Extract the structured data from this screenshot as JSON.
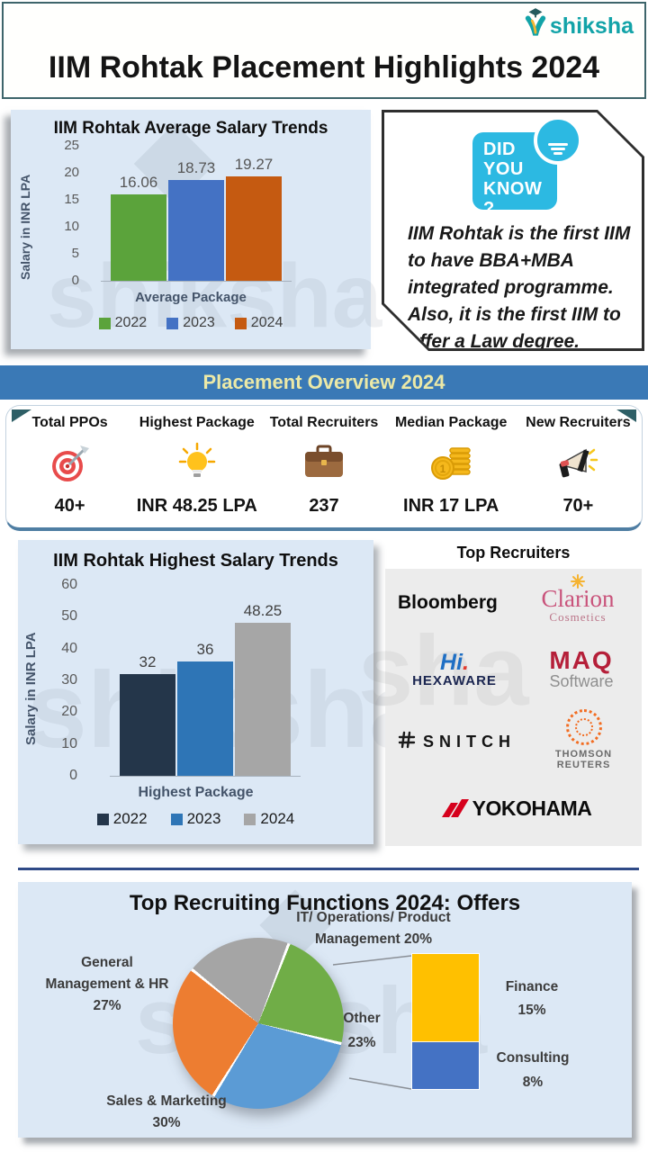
{
  "header": {
    "title": "IIM Rohtak Placement Highlights 2024",
    "brand": "shiksha"
  },
  "colors": {
    "banner_bg": "#3a79b6",
    "banner_text": "#ece9a7",
    "card_bg": "#dce8f5",
    "brand_teal": "#12a3a8",
    "dyk_badge": "#2cb9e2"
  },
  "chart_data": [
    {
      "type": "bar",
      "title": "IIM Rohtak Average Salary Trends",
      "ylabel": "Salary in INR LPA",
      "xlabel": "Average Package",
      "categories": [
        "2022",
        "2023",
        "2024"
      ],
      "values": [
        16.06,
        18.73,
        19.27
      ],
      "value_labels": [
        "16.06",
        "18.73",
        "19.27"
      ],
      "colors": [
        "#5ba33b",
        "#4472c4",
        "#c55a11"
      ],
      "ylim": [
        0,
        25
      ],
      "yticks": [
        25,
        20,
        15,
        10,
        5,
        0
      ],
      "legend_position": "bottom",
      "grid": false
    },
    {
      "type": "bar",
      "title": "IIM Rohtak Highest Salary Trends",
      "ylabel": "Salary in INR LPA",
      "xlabel": "Highest Package",
      "categories": [
        "2022",
        "2023",
        "2024"
      ],
      "values": [
        32,
        36,
        48.25
      ],
      "value_labels": [
        "32",
        "36",
        "48.25"
      ],
      "colors": [
        "#24364a",
        "#2e75b6",
        "#a6a6a6"
      ],
      "ylim": [
        0,
        60
      ],
      "yticks": [
        60,
        50,
        40,
        30,
        20,
        10,
        0
      ],
      "legend_position": "bottom",
      "grid": false
    },
    {
      "type": "pie",
      "title": "Top Recruiting Functions 2024: Offers",
      "start_angle_deg": -50,
      "slices": [
        {
          "label": "IT/ Operations/ Product Management",
          "pct": 20,
          "color": "#a5a5a5",
          "label_lines": [
            "IT/ Operations/ Product",
            "Management 20%"
          ]
        },
        {
          "label": "Other",
          "pct": 23,
          "color": "#70ad47",
          "label_lines": [
            "Other",
            "23%"
          ]
        },
        {
          "label": "Sales & Marketing",
          "pct": 30,
          "color": "#5b9bd5",
          "label_lines": [
            "Sales & Marketing",
            "30%"
          ]
        },
        {
          "label": "General Management & HR",
          "pct": 27,
          "color": "#ed7d31",
          "label_lines": [
            "General",
            "Management & HR",
            "27%"
          ]
        }
      ],
      "breakout_bar": [
        {
          "label": "Finance",
          "pct": 15,
          "color": "#ffc000",
          "label_lines": [
            "Finance",
            "15%"
          ]
        },
        {
          "label": "Consulting",
          "pct": 8,
          "color": "#4472c4",
          "label_lines": [
            "Consulting",
            "8%"
          ]
        }
      ]
    }
  ],
  "did_you_know": {
    "badge_lines": [
      "DID",
      "YOU",
      "KNOW ?"
    ],
    "text_lines": [
      "IIM Rohtak is the first IIM",
      "to have BBA+MBA",
      "integrated programme.",
      "Also, it is the first IIM to",
      "offer a Law degree."
    ]
  },
  "overview": {
    "banner_title": "Placement Overview 2024",
    "stats": [
      {
        "label": "Total PPOs",
        "value": "40+",
        "icon": "target-icon"
      },
      {
        "label": "Highest Package",
        "value": "INR 48.25 LPA",
        "icon": "bulb-icon"
      },
      {
        "label": "Total Recruiters",
        "value": "237",
        "icon": "briefcase-icon"
      },
      {
        "label": "Median Package",
        "value": "INR 17 LPA",
        "icon": "coins-icon"
      },
      {
        "label": "New Recruiters",
        "value": "70+",
        "icon": "megaphone-icon"
      }
    ]
  },
  "recruiters": {
    "title": "Top Recruiters",
    "logos": [
      {
        "name": "Bloomberg",
        "text": "Bloomberg"
      },
      {
        "name": "Clarion Cosmetics",
        "text": "Clarion",
        "subtext": "Cosmetics",
        "flower": "✳"
      },
      {
        "name": "Hexaware",
        "text": "Hi",
        "dot": ".",
        "subtext": "HEXAWARE"
      },
      {
        "name": "MAQ Software",
        "text": "MAQ",
        "subtext": "Software"
      },
      {
        "name": "Snitch",
        "text": "SNITCH"
      },
      {
        "name": "Thomson Reuters",
        "text": "THOMSON REUTERS"
      },
      {
        "name": "Yokohama",
        "text": "YOKOHAMA"
      }
    ]
  }
}
